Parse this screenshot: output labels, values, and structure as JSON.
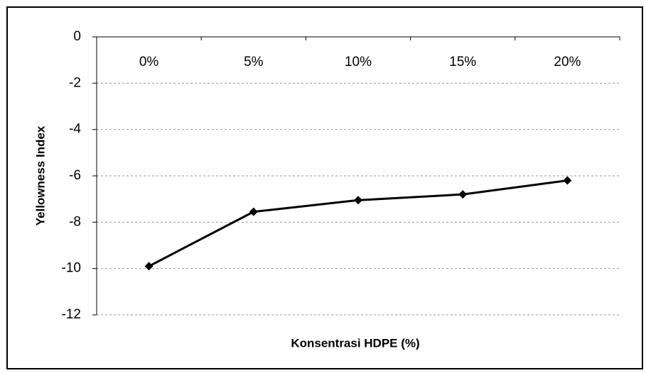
{
  "chart_data": {
    "type": "line",
    "categories": [
      "0%",
      "5%",
      "10%",
      "15%",
      "20%"
    ],
    "series": [
      {
        "name": "Yellowness Index",
        "color": "#000000",
        "values": [
          -9.9,
          -7.55,
          -7.05,
          -6.8,
          -6.2
        ]
      }
    ],
    "ylim": [
      -12,
      0
    ],
    "yticks": [
      0,
      -2,
      -4,
      -6,
      -8,
      -10,
      -12
    ],
    "ylabel": "Yellowness Index",
    "xlabel": "Konsentrasi HDPE (%)",
    "grid": true
  }
}
